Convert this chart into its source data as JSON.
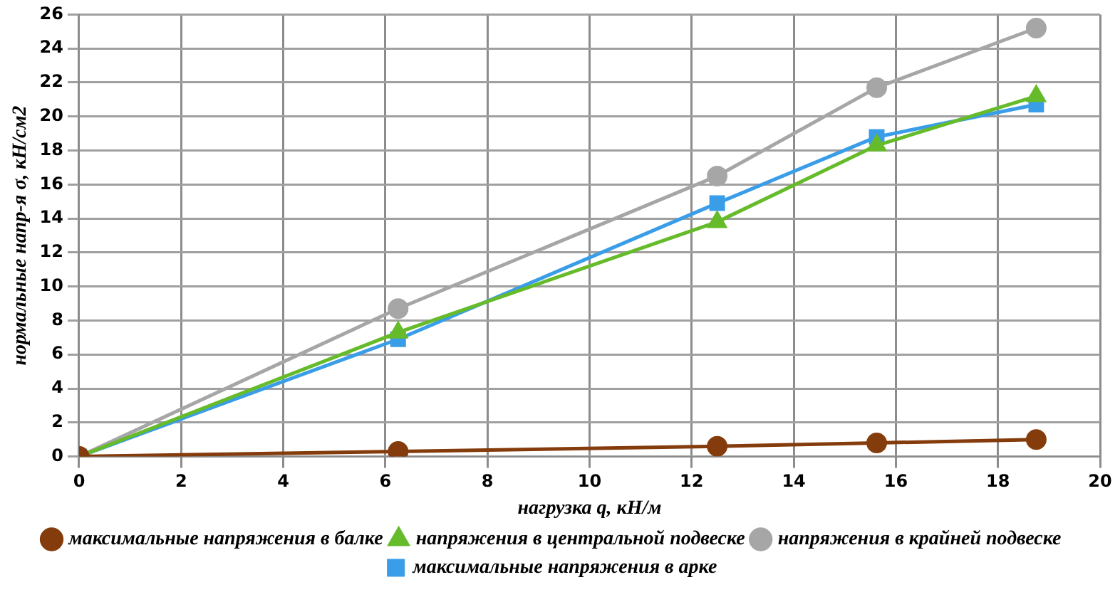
{
  "chart_data": {
    "type": "line",
    "xlabel": "нагрузка q, кН/м",
    "ylabel": "нормальные напр-я σ, кН/см2",
    "xlim": [
      0,
      20
    ],
    "xticks": [
      0,
      2,
      4,
      6,
      8,
      10,
      12,
      14,
      16,
      18,
      20
    ],
    "ylim": [
      0,
      26
    ],
    "yticks": [
      0,
      2,
      4,
      6,
      8,
      10,
      12,
      14,
      16,
      18,
      20,
      22,
      24,
      26
    ],
    "grid": true,
    "legend": "bottom",
    "line_style": "solid",
    "series": [
      {
        "name": "максимальные напряжения в арке",
        "color": "#3a9de8",
        "marker": "square",
        "x": [
          0,
          6.25,
          12.5,
          15.625,
          18.75
        ],
        "values": [
          0,
          6.9,
          14.9,
          18.8,
          20.7
        ]
      },
      {
        "name": "напряжения в крайней подвеске",
        "color": "#a6a6a6",
        "marker": "circle",
        "x": [
          0,
          6.25,
          12.5,
          15.625,
          18.75
        ],
        "values": [
          0,
          8.7,
          16.5,
          21.7,
          25.2
        ]
      },
      {
        "name": "напряжения в центральной подвеске",
        "color": "#66bb2a",
        "marker": "triangle",
        "x": [
          0,
          6.25,
          12.5,
          15.625,
          18.75
        ],
        "values": [
          0,
          7.3,
          13.8,
          18.3,
          21.2
        ]
      },
      {
        "name": "максимальные напряжения в балке",
        "color": "#843c0c",
        "marker": "circle",
        "x": [
          0,
          6.25,
          12.5,
          15.625,
          18.75
        ],
        "values": [
          0,
          0.3,
          0.6,
          0.8,
          1.0
        ]
      }
    ]
  }
}
